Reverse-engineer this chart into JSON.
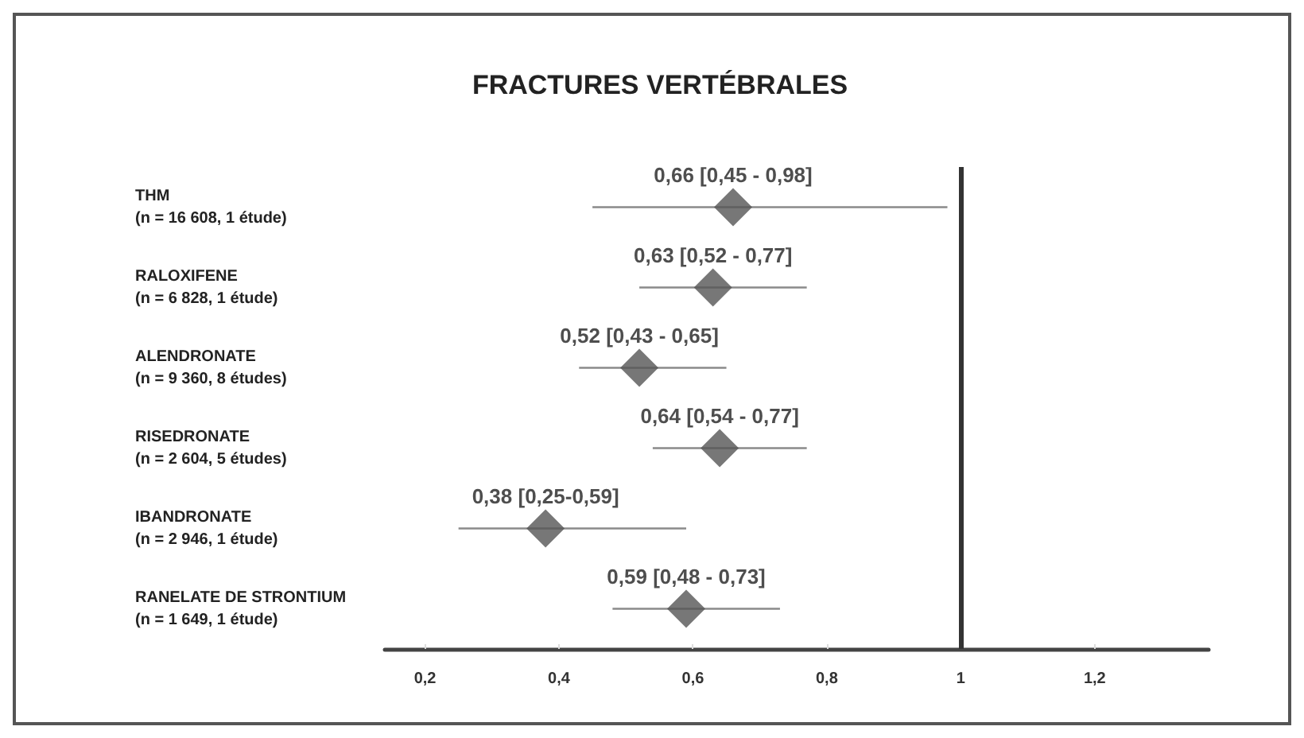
{
  "chart_data": {
    "type": "scatter",
    "orientation": "horizontal",
    "title": "FRACTURES VERTÉBRALES",
    "categories": [
      "THM\n(n = 16 608, 1 étude)",
      "RALOXIFENE\n(n = 6 828, 1 étude)",
      "ALENDRONATE\n(n = 9 360, 8 études)",
      "RISEDRONATE\n(n = 2 604, 5 études)",
      "IBANDRONATE\n(n = 2 946, 1 étude)",
      "RANELATE DE STRONTIUM\n(n = 1 649, 1 étude)"
    ],
    "values": [
      0.66,
      0.63,
      0.52,
      0.64,
      0.38,
      0.59
    ],
    "errors": [
      [
        0.45,
        0.98
      ],
      [
        0.52,
        0.77
      ],
      [
        0.43,
        0.65
      ],
      [
        0.54,
        0.77
      ],
      [
        0.25,
        0.59
      ],
      [
        0.48,
        0.73
      ]
    ],
    "value_labels": [
      "0,66 [0,45 - 0,98]",
      "0,63 [0,52 - 0,77]",
      "0,52 [0,43 - 0,65]",
      "0,64 [0,54 - 0,77]",
      "0,38 [0,25-0,59]",
      "0,59 [0,48 - 0,73]"
    ],
    "color": "#555555",
    "marker": "diamond",
    "grid": false,
    "xlim": [
      0.14,
      1.37
    ],
    "xticks": [
      {
        "value": 0.2,
        "label": "0,2"
      },
      {
        "value": 0.4,
        "label": "0,4"
      },
      {
        "value": 0.6,
        "label": "0,6"
      },
      {
        "value": 0.8,
        "label": "0,8"
      },
      {
        "value": 1,
        "label": "1"
      },
      {
        "value": 1.2,
        "label": "1,2"
      }
    ],
    "ref_lines": [
      {
        "axis": "x",
        "value": 1,
        "label": null,
        "color": "#333333"
      }
    ]
  }
}
